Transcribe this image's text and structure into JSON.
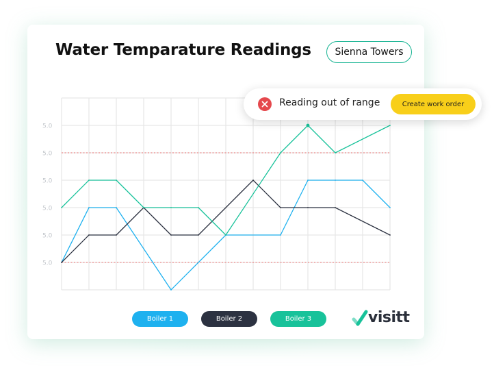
{
  "header": {
    "title": "Water Temparature Readings",
    "site": "Sienna Towers"
  },
  "alert": {
    "icon": "close-circle-icon",
    "message": "Reading out of range",
    "action_label": "Create work order",
    "icon_color": "#e5484d",
    "button_color": "#f8cf1a"
  },
  "chart_data": {
    "type": "line",
    "y_tick_labels": [
      "5.0",
      "5.0",
      "5.0",
      "5.0",
      "5.0",
      "5.0"
    ],
    "x": [
      0,
      1,
      2,
      3,
      4,
      5,
      6,
      7,
      8,
      9,
      10,
      11,
      12
    ],
    "ylim": [
      0,
      7
    ],
    "grid": true,
    "thresholds": {
      "upper": 5,
      "lower": 1,
      "color": "#f08a8a"
    },
    "series": [
      {
        "name": "Boiler 1",
        "color": "#1eb1ef",
        "values": [
          1,
          3,
          3,
          null,
          0,
          null,
          2,
          null,
          2,
          4,
          4,
          4,
          3
        ]
      },
      {
        "name": "Boiler 2",
        "color": "#2c3241",
        "values": [
          1,
          2,
          2,
          3,
          2,
          2,
          null,
          4,
          3,
          3,
          3,
          null,
          2
        ]
      },
      {
        "name": "Boiler 3",
        "color": "#18c29a",
        "values": [
          3,
          4,
          4,
          3,
          3,
          3,
          2,
          null,
          5,
          6,
          5,
          null,
          6
        ]
      }
    ]
  },
  "legend": [
    {
      "label": "Boiler 1",
      "color": "#1eb1ef"
    },
    {
      "label": "Boiler 2",
      "color": "#2c3241"
    },
    {
      "label": "Boiler 3",
      "color": "#18c29a"
    }
  ],
  "brand": {
    "name": "visitt",
    "icon": "check-mark-icon",
    "accent": "#18c29a"
  }
}
